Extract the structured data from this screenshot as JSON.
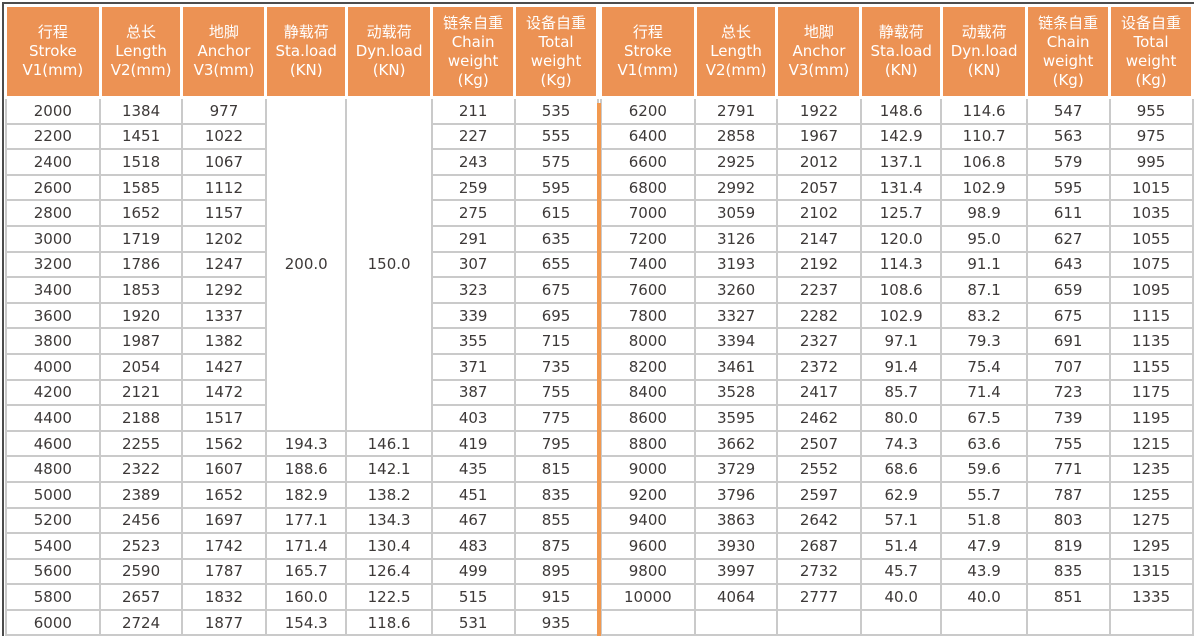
{
  "table": {
    "columns": [
      {
        "name": "stroke",
        "lines": [
          "行程",
          "Stroke",
          "V1(mm)"
        ]
      },
      {
        "name": "length",
        "lines": [
          "总长",
          "Length",
          "V2(mm)"
        ]
      },
      {
        "name": "anchor",
        "lines": [
          "地脚",
          "Anchor",
          "V3(mm)"
        ]
      },
      {
        "name": "static-load",
        "lines": [
          "静载荷",
          "Sta.load",
          "(KN)"
        ]
      },
      {
        "name": "dynamic-load",
        "lines": [
          "动载荷",
          "Dyn.load",
          "(KN)"
        ]
      },
      {
        "name": "chain-weight",
        "lines": [
          "链条自重",
          "Chain",
          "weight",
          "(Kg)"
        ]
      },
      {
        "name": "total-weight",
        "lines": [
          "设备自重",
          "Total",
          "weight",
          "(Kg)"
        ]
      }
    ],
    "left": {
      "merged": {
        "start_row": 0,
        "span": 13,
        "sta_load": "200.0",
        "dyn_load": "150.0"
      },
      "rows": [
        [
          "2000",
          "1384",
          "977",
          null,
          null,
          "211",
          "535"
        ],
        [
          "2200",
          "1451",
          "1022",
          null,
          null,
          "227",
          "555"
        ],
        [
          "2400",
          "1518",
          "1067",
          null,
          null,
          "243",
          "575"
        ],
        [
          "2600",
          "1585",
          "1112",
          null,
          null,
          "259",
          "595"
        ],
        [
          "2800",
          "1652",
          "1157",
          null,
          null,
          "275",
          "615"
        ],
        [
          "3000",
          "1719",
          "1202",
          null,
          null,
          "291",
          "635"
        ],
        [
          "3200",
          "1786",
          "1247",
          null,
          null,
          "307",
          "655"
        ],
        [
          "3400",
          "1853",
          "1292",
          null,
          null,
          "323",
          "675"
        ],
        [
          "3600",
          "1920",
          "1337",
          null,
          null,
          "339",
          "695"
        ],
        [
          "3800",
          "1987",
          "1382",
          null,
          null,
          "355",
          "715"
        ],
        [
          "4000",
          "2054",
          "1427",
          null,
          null,
          "371",
          "735"
        ],
        [
          "4200",
          "2121",
          "1472",
          null,
          null,
          "387",
          "755"
        ],
        [
          "4400",
          "2188",
          "1517",
          null,
          null,
          "403",
          "775"
        ],
        [
          "4600",
          "2255",
          "1562",
          "194.3",
          "146.1",
          "419",
          "795"
        ],
        [
          "4800",
          "2322",
          "1607",
          "188.6",
          "142.1",
          "435",
          "815"
        ],
        [
          "5000",
          "2389",
          "1652",
          "182.9",
          "138.2",
          "451",
          "835"
        ],
        [
          "5200",
          "2456",
          "1697",
          "177.1",
          "134.3",
          "467",
          "855"
        ],
        [
          "5400",
          "2523",
          "1742",
          "171.4",
          "130.4",
          "483",
          "875"
        ],
        [
          "5600",
          "2590",
          "1787",
          "165.7",
          "126.4",
          "499",
          "895"
        ],
        [
          "5800",
          "2657",
          "1832",
          "160.0",
          "122.5",
          "515",
          "915"
        ],
        [
          "6000",
          "2724",
          "1877",
          "154.3",
          "118.6",
          "531",
          "935"
        ]
      ]
    },
    "right": {
      "merged": null,
      "rows": [
        [
          "6200",
          "2791",
          "1922",
          "148.6",
          "114.6",
          "547",
          "955"
        ],
        [
          "6400",
          "2858",
          "1967",
          "142.9",
          "110.7",
          "563",
          "975"
        ],
        [
          "6600",
          "2925",
          "2012",
          "137.1",
          "106.8",
          "579",
          "995"
        ],
        [
          "6800",
          "2992",
          "2057",
          "131.4",
          "102.9",
          "595",
          "1015"
        ],
        [
          "7000",
          "3059",
          "2102",
          "125.7",
          "98.9",
          "611",
          "1035"
        ],
        [
          "7200",
          "3126",
          "2147",
          "120.0",
          "95.0",
          "627",
          "1055"
        ],
        [
          "7400",
          "3193",
          "2192",
          "114.3",
          "91.1",
          "643",
          "1075"
        ],
        [
          "7600",
          "3260",
          "2237",
          "108.6",
          "87.1",
          "659",
          "1095"
        ],
        [
          "7800",
          "3327",
          "2282",
          "102.9",
          "83.2",
          "675",
          "1115"
        ],
        [
          "8000",
          "3394",
          "2327",
          "97.1",
          "79.3",
          "691",
          "1135"
        ],
        [
          "8200",
          "3461",
          "2372",
          "91.4",
          "75.4",
          "707",
          "1155"
        ],
        [
          "8400",
          "3528",
          "2417",
          "85.7",
          "71.4",
          "723",
          "1175"
        ],
        [
          "8600",
          "3595",
          "2462",
          "80.0",
          "67.5",
          "739",
          "1195"
        ],
        [
          "8800",
          "3662",
          "2507",
          "74.3",
          "63.6",
          "755",
          "1215"
        ],
        [
          "9000",
          "3729",
          "2552",
          "68.6",
          "59.6",
          "771",
          "1235"
        ],
        [
          "9200",
          "3796",
          "2597",
          "62.9",
          "55.7",
          "787",
          "1255"
        ],
        [
          "9400",
          "3863",
          "2642",
          "57.1",
          "51.8",
          "803",
          "1275"
        ],
        [
          "9600",
          "3930",
          "2687",
          "51.4",
          "47.9",
          "819",
          "1295"
        ],
        [
          "9800",
          "3997",
          "2732",
          "45.7",
          "43.9",
          "835",
          "1315"
        ],
        [
          "10000",
          "4064",
          "2777",
          "40.0",
          "40.0",
          "851",
          "1335"
        ],
        [
          "",
          "",
          "",
          "",
          "",
          "",
          ""
        ]
      ]
    },
    "colors": {
      "header_bg": "#EC9254",
      "divider": "#F2994F",
      "cell_border": "#CACACA",
      "text": "#3D3938",
      "header_text": "#FFFFFF"
    }
  }
}
